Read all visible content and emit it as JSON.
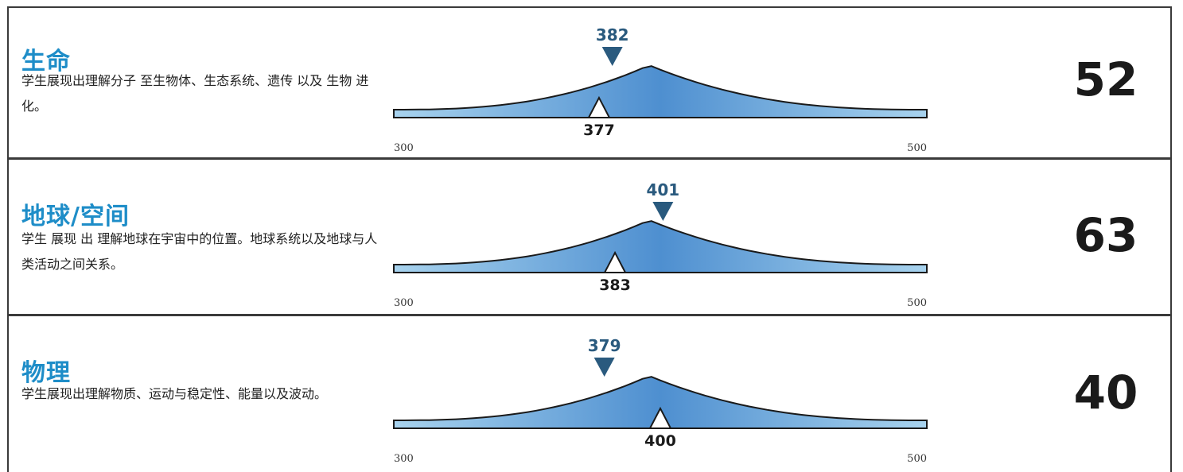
{
  "colors": {
    "title": "#1e8dc8",
    "marker": "#2a5a7e",
    "curve_center": "#4e8fd0",
    "curve_edge": "#a8d3ee"
  },
  "chart_data": [
    {
      "type": "distribution-marker",
      "title": "生命",
      "description": "学生展现出理解分子 至生物体、生态系统、遗传 以及 生物 进化。",
      "score": "52",
      "top_marker": 382,
      "bottom_marker": 377,
      "xlim": [
        300,
        500
      ],
      "peak": 400,
      "tick_labels": [
        "300",
        "500"
      ]
    },
    {
      "type": "distribution-marker",
      "title": "地球/空间",
      "description": "学生 展现 出 理解地球在宇宙中的位置。地球系统以及地球与人类活动之间关系。",
      "score": "63",
      "top_marker": 401,
      "bottom_marker": 383,
      "xlim": [
        300,
        500
      ],
      "peak": 400,
      "tick_labels": [
        "300",
        "500"
      ]
    },
    {
      "type": "distribution-marker",
      "title": "物理",
      "description": "学生展现出理解物质、运动与稳定性、能量以及波动。",
      "score": "40",
      "top_marker": 379,
      "bottom_marker": 400,
      "xlim": [
        300,
        500
      ],
      "peak": 400,
      "tick_labels": [
        "300",
        "500"
      ]
    }
  ]
}
